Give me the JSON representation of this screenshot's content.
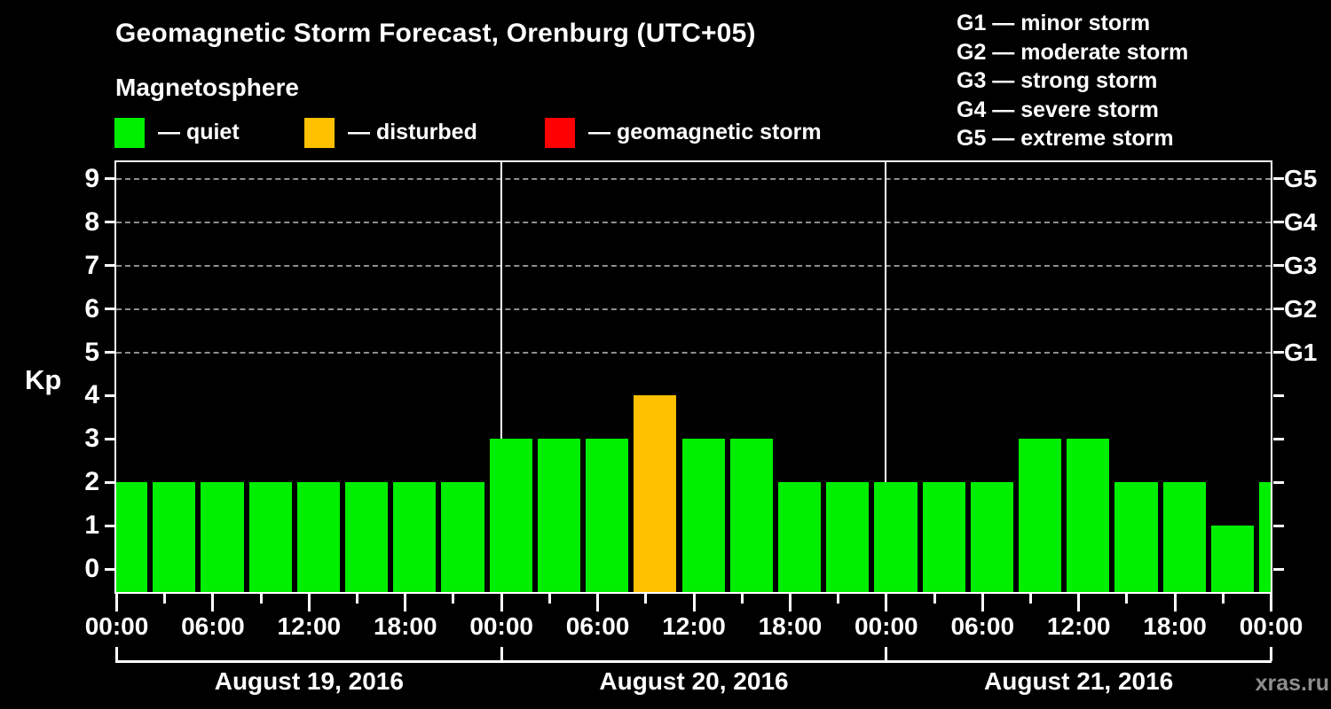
{
  "header": {
    "title": "Geomagnetic Storm Forecast, Orenburg (UTC+05)",
    "subtitle": "Magnetosphere"
  },
  "legend": {
    "items": [
      {
        "key": "quiet",
        "label": "— quiet",
        "color": "#00ee00"
      },
      {
        "key": "disturbed",
        "label": "— disturbed",
        "color": "#ffc000"
      },
      {
        "key": "storm",
        "label": "— geomagnetic storm",
        "color": "#ff0000"
      }
    ]
  },
  "g_legend": {
    "items": [
      {
        "text": "G1 — minor storm"
      },
      {
        "text": "G2 — moderate storm"
      },
      {
        "text": "G3 — strong storm"
      },
      {
        "text": "G4 — severe storm"
      },
      {
        "text": "G5 — extreme storm"
      }
    ]
  },
  "watermark": "xras.ru",
  "chart_data": {
    "type": "bar",
    "title": "Geomagnetic Storm Forecast, Orenburg (UTC+05)",
    "subtitle": "Magnetosphere",
    "ylabel": "Kp",
    "ylim": [
      0,
      9
    ],
    "y_ticks": [
      0,
      1,
      2,
      3,
      4,
      5,
      6,
      7,
      8,
      9
    ],
    "dashed_gridlines_at_kp": [
      5,
      6,
      7,
      8,
      9
    ],
    "right_axis_labels": [
      {
        "kp": 9,
        "label": "G5"
      },
      {
        "kp": 8,
        "label": "G4"
      },
      {
        "kp": 7,
        "label": "G3"
      },
      {
        "kp": 6,
        "label": "G2"
      },
      {
        "kp": 5,
        "label": "G1"
      }
    ],
    "bar_interval_hours": 3,
    "time_tick_labels": [
      "00:00",
      "06:00",
      "12:00",
      "18:00",
      "00:00",
      "06:00",
      "12:00",
      "18:00",
      "00:00",
      "06:00",
      "12:00",
      "18:00",
      "00:00"
    ],
    "days": [
      {
        "label": "August 19, 2016",
        "kp": [
          2,
          2,
          2,
          2,
          2,
          2,
          2,
          2
        ]
      },
      {
        "label": "August 20, 2016",
        "kp": [
          3,
          3,
          3,
          4,
          3,
          3,
          2,
          2
        ]
      },
      {
        "label": "August 21, 2016",
        "kp": [
          2,
          2,
          2,
          3,
          3,
          2,
          2,
          1
        ]
      }
    ],
    "next_day_partial_bar_kp": 2,
    "color_rule": {
      "quiet_max_kp": 3,
      "disturbed_kp": 4,
      "storm_min_kp": 5
    },
    "colors": {
      "quiet": "#00ee00",
      "disturbed": "#ffc000",
      "storm": "#ff0000"
    },
    "legend_position": "top-left",
    "grid": "dashed horizontal at Kp 5-9 only"
  }
}
